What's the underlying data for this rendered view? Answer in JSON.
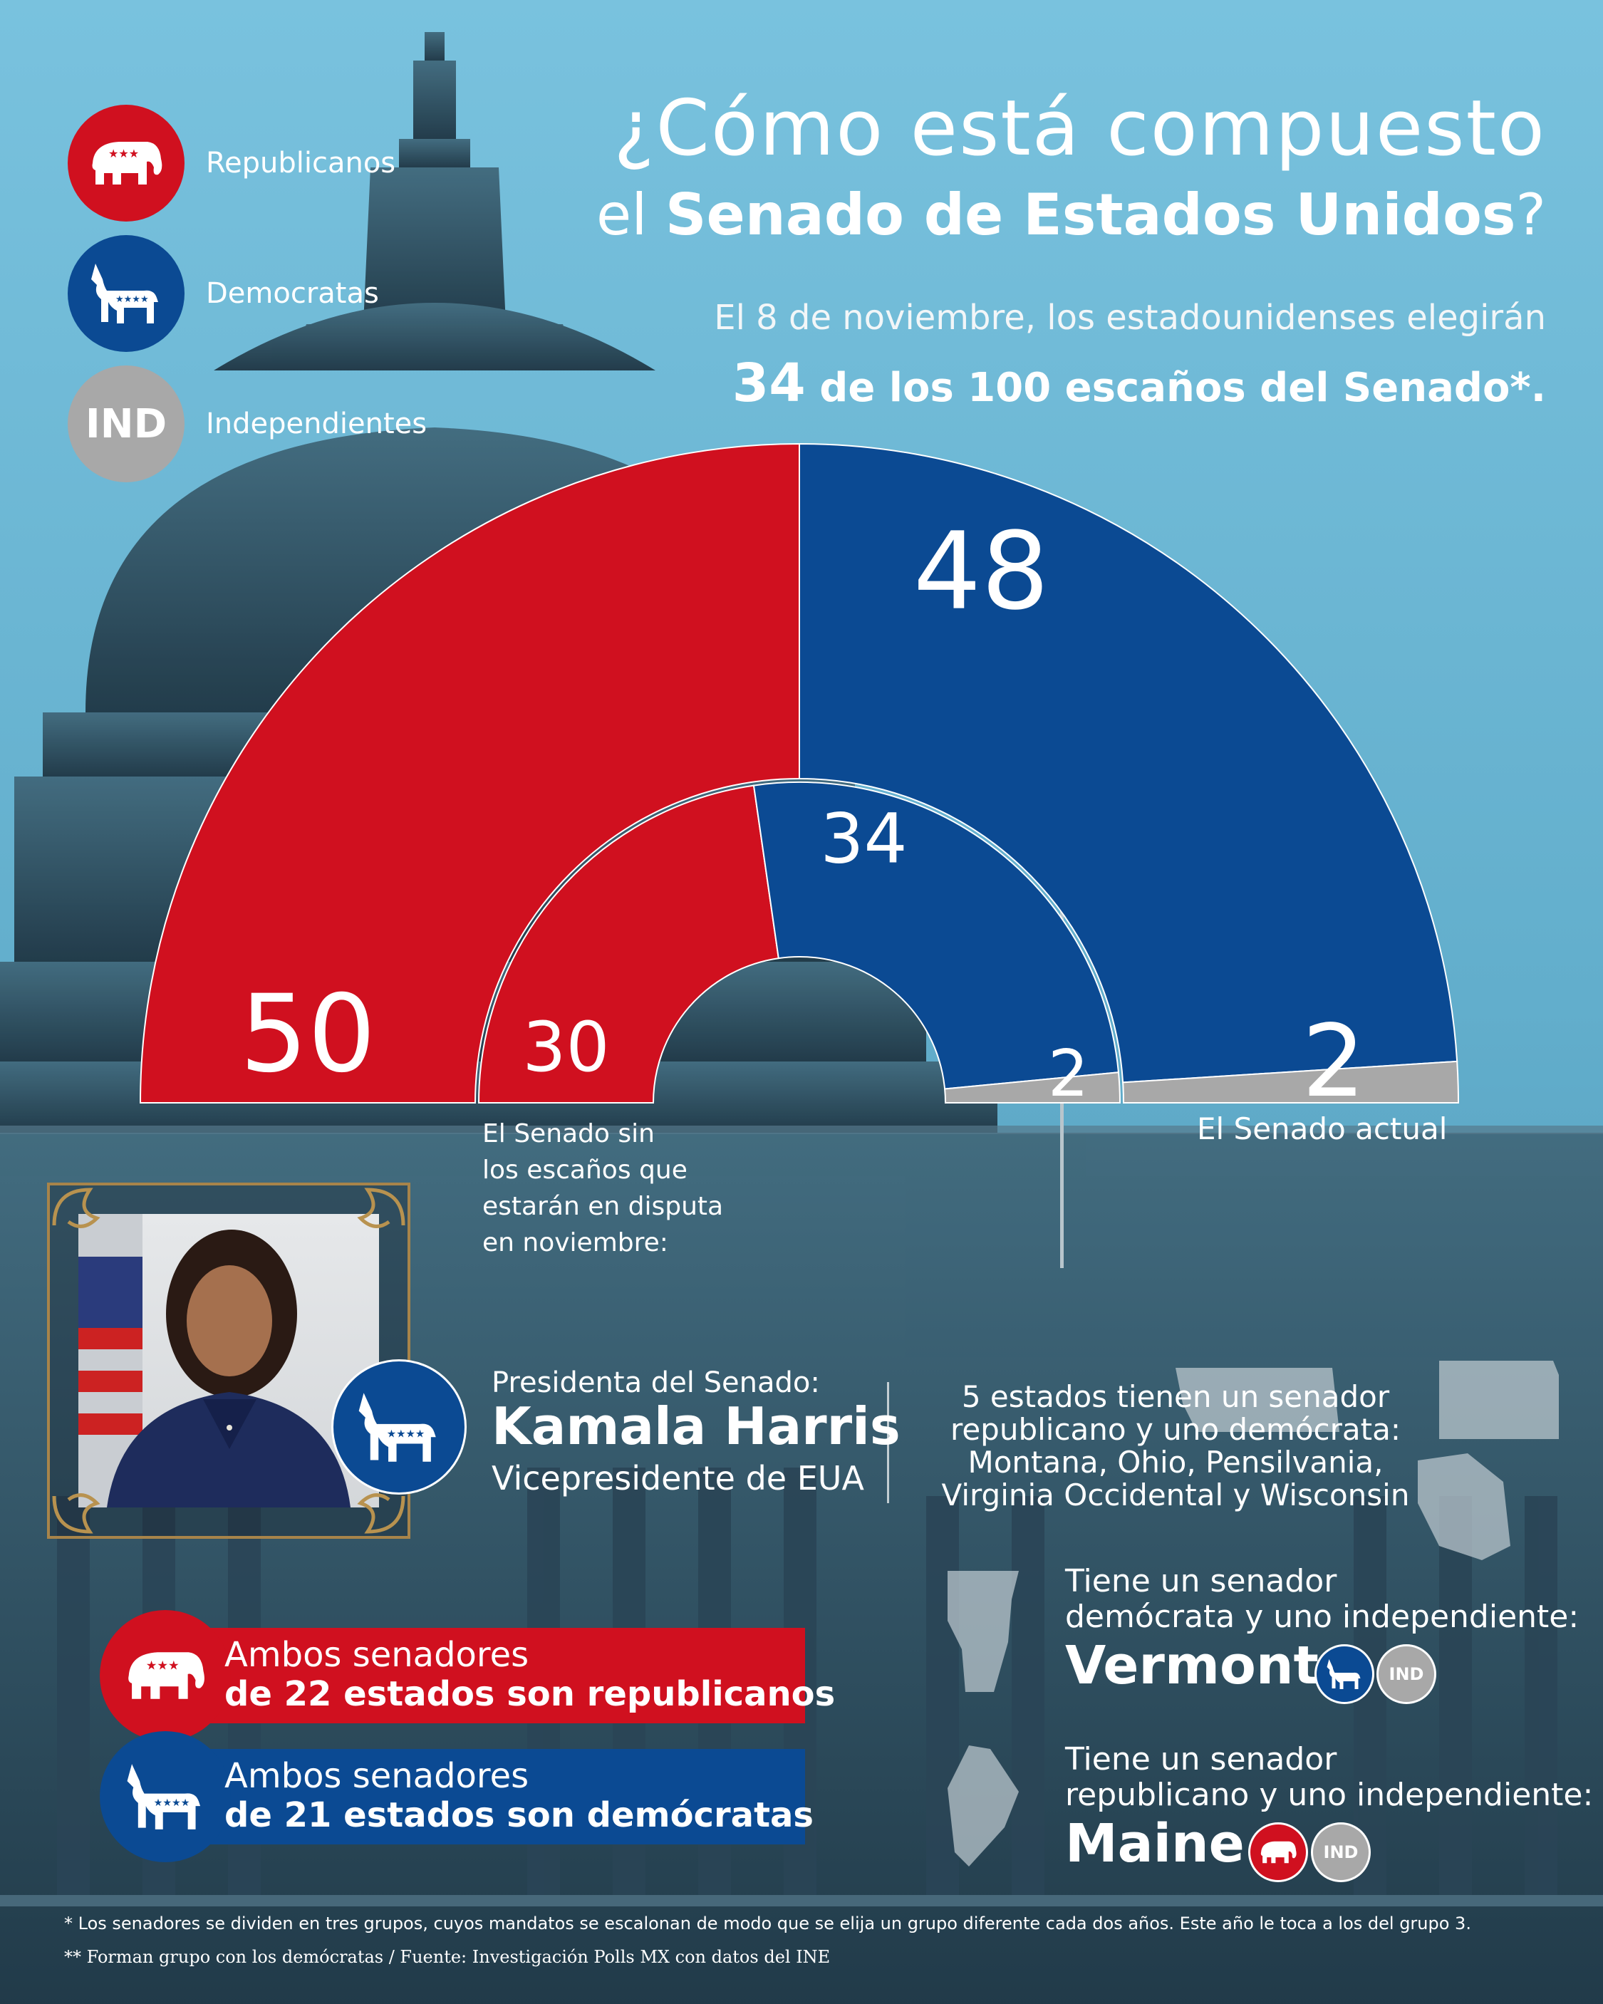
{
  "colors": {
    "republican": "#d0101f",
    "democrat": "#0b4a93",
    "independent": "#a8a8a8",
    "sky": "#6fb8d6"
  },
  "legend": [
    {
      "label": "Republicanos",
      "icon": "elephant-icon",
      "color": "#d0101f"
    },
    {
      "label": "Democratas",
      "icon": "donkey-icon",
      "color": "#0b4a93"
    },
    {
      "label": "Independientes",
      "icon": "ind-icon",
      "text": "IND",
      "color": "#a8a8a8"
    }
  ],
  "title": {
    "line1": "¿Cómo está compuesto",
    "line2_pre": "el ",
    "line2_bold": "Senado de Estados Unidos",
    "line2_post": "?"
  },
  "subtitle": {
    "line1": "El 8 de noviembre, los estadounidenses elegirán",
    "number": "34",
    "line2": " de los 100 escaños del Senado*."
  },
  "chart_data": [
    {
      "type": "pie",
      "title": "El Senado actual",
      "slices": [
        {
          "name": "Republicanos",
          "value": 50,
          "label": "50"
        },
        {
          "name": "Democratas",
          "value": 48,
          "label": "48"
        },
        {
          "name": "Independientes",
          "value": 2,
          "label": "2"
        }
      ]
    },
    {
      "type": "pie",
      "title": "El Senado sin los escaños que estarán en disputa en noviembre:",
      "slices": [
        {
          "name": "Republicanos",
          "value": 30,
          "label": "30"
        },
        {
          "name": "Democratas",
          "value": 34,
          "label": "34"
        },
        {
          "name": "Independientes",
          "value": 2,
          "label": "2"
        }
      ]
    }
  ],
  "chart_labels": {
    "outer": "El Senado actual",
    "inner": "El Senado sin\nlos escaños que\nestarán en disputa\nen noviembre:"
  },
  "president": {
    "role": "Presidenta del Senado:",
    "name": "Kamala Harris",
    "title": "Vicepresidente de EUA"
  },
  "split_states": {
    "text": "5 estados tienen un senador\nrepublicano y uno demócrata:\nMontana, Ohio, Pensilvania,\nVirginia Occidental y Wisconsin"
  },
  "banners": [
    {
      "line1": "Ambos senadores",
      "line2": "de 22 estados son republicanos"
    },
    {
      "line1": "Ambos senadores",
      "line2": "de 21 estados son demócratas"
    }
  ],
  "vermont": {
    "text": "Tiene un senador\ndemócrata y uno independiente:",
    "name": "Vermont",
    "ind": "IND"
  },
  "maine": {
    "text": "Tiene un senador\nrepublicano y uno independiente:",
    "name": "Maine",
    "ind": "IND"
  },
  "footnotes": {
    "note1": "* Los senadores se dividen en tres grupos, cuyos mandatos se escalonan de modo que se elija un grupo diferente cada dos años. Este año le toca a los del grupo 3.",
    "note2": "** Forman grupo con los demócratas / Fuente: Investigación Polls MX con datos del INE"
  }
}
